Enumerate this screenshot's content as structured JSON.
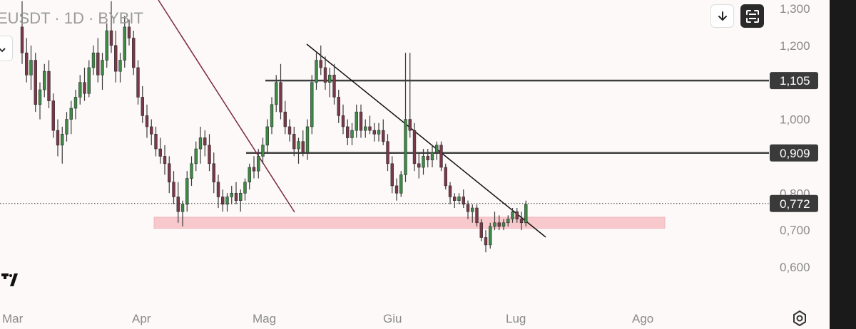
{
  "header": {
    "symbol_label": "EUSDT · 1D · BYBIT"
  },
  "toolbar": {
    "download_icon": "arrow-down-icon",
    "fullscreen_icon": "fullscreen-icon",
    "left_icon": "chevron-icon"
  },
  "footer": {
    "settings_icon": "gear-icon",
    "logo_icon": "tradingview-logo-icon"
  },
  "colors": {
    "up": "#3d8b47",
    "down": "#7a3848",
    "wick": "#3a3a3a",
    "zone": "#f7c8cc",
    "resistance": "#404040",
    "trendline_brown": "#7a2a3a",
    "trendline_black": "#111111",
    "badge": "#3a3a3a",
    "grid_dots": "#333333"
  },
  "chart_data": {
    "type": "candlestick",
    "title": "",
    "xlabel": "",
    "ylabel": "",
    "y_ticks": [
      "1,300",
      "1,200",
      "1,000",
      "0,800",
      "0,700",
      "0,600"
    ],
    "y_tick_values": [
      1.3,
      1.2,
      1.0,
      0.8,
      0.7,
      0.6
    ],
    "x_ticks": [
      "Mar",
      "Apr",
      "Mag",
      "Giu",
      "Lug",
      "Ago"
    ],
    "ylim": [
      0.55,
      1.33
    ],
    "horizontal_levels": [
      {
        "label": "1,105",
        "value": 1.105
      },
      {
        "label": "0,909",
        "value": 0.909
      }
    ],
    "current_price": {
      "label": "0,772",
      "value": 0.772
    },
    "support_zone": {
      "from": 0.705,
      "to": 0.735
    },
    "candles": [
      [
        1.25,
        1.32,
        1.15,
        1.18
      ],
      [
        1.18,
        1.22,
        1.1,
        1.12
      ],
      [
        1.12,
        1.2,
        1.08,
        1.16
      ],
      [
        1.16,
        1.18,
        1.02,
        1.04
      ],
      [
        1.04,
        1.1,
        1.0,
        1.08
      ],
      [
        1.08,
        1.15,
        1.06,
        1.13
      ],
      [
        1.13,
        1.16,
        1.03,
        1.05
      ],
      [
        1.05,
        1.07,
        0.95,
        0.97
      ],
      [
        0.97,
        1.0,
        0.9,
        0.93
      ],
      [
        0.93,
        0.98,
        0.88,
        0.96
      ],
      [
        0.96,
        1.02,
        0.94,
        1.0
      ],
      [
        1.0,
        1.05,
        0.96,
        1.03
      ],
      [
        1.03,
        1.08,
        1.0,
        1.06
      ],
      [
        1.06,
        1.12,
        1.04,
        1.1
      ],
      [
        1.1,
        1.14,
        1.05,
        1.07
      ],
      [
        1.07,
        1.16,
        1.06,
        1.14
      ],
      [
        1.14,
        1.2,
        1.12,
        1.18
      ],
      [
        1.18,
        1.22,
        1.1,
        1.12
      ],
      [
        1.12,
        1.18,
        1.08,
        1.16
      ],
      [
        1.16,
        1.26,
        1.14,
        1.24
      ],
      [
        1.24,
        1.32,
        1.18,
        1.2
      ],
      [
        1.2,
        1.24,
        1.1,
        1.13
      ],
      [
        1.13,
        1.18,
        1.1,
        1.16
      ],
      [
        1.16,
        1.28,
        1.14,
        1.25
      ],
      [
        1.25,
        1.27,
        1.2,
        1.22
      ],
      [
        1.22,
        1.24,
        1.12,
        1.14
      ],
      [
        1.14,
        1.16,
        1.04,
        1.06
      ],
      [
        1.06,
        1.09,
        0.99,
        1.01
      ],
      [
        1.01,
        1.04,
        0.95,
        0.98
      ],
      [
        0.98,
        1.0,
        0.93,
        0.96
      ],
      [
        0.96,
        0.98,
        0.9,
        0.92
      ],
      [
        0.92,
        0.95,
        0.88,
        0.9
      ],
      [
        0.9,
        0.93,
        0.85,
        0.88
      ],
      [
        0.88,
        0.9,
        0.8,
        0.83
      ],
      [
        0.83,
        0.86,
        0.77,
        0.79
      ],
      [
        0.79,
        0.83,
        0.72,
        0.75
      ],
      [
        0.75,
        0.78,
        0.71,
        0.77
      ],
      [
        0.77,
        0.86,
        0.75,
        0.84
      ],
      [
        0.84,
        0.9,
        0.82,
        0.88
      ],
      [
        0.88,
        0.94,
        0.86,
        0.92
      ],
      [
        0.92,
        0.98,
        0.88,
        0.95
      ],
      [
        0.95,
        0.97,
        0.9,
        0.93
      ],
      [
        0.93,
        0.96,
        0.86,
        0.88
      ],
      [
        0.88,
        0.91,
        0.8,
        0.83
      ],
      [
        0.83,
        0.85,
        0.76,
        0.79
      ],
      [
        0.79,
        0.81,
        0.75,
        0.77
      ],
      [
        0.77,
        0.8,
        0.75,
        0.79
      ],
      [
        0.79,
        0.82,
        0.77,
        0.8
      ],
      [
        0.8,
        0.83,
        0.77,
        0.78
      ],
      [
        0.78,
        0.81,
        0.75,
        0.8
      ],
      [
        0.8,
        0.84,
        0.78,
        0.83
      ],
      [
        0.83,
        0.88,
        0.81,
        0.87
      ],
      [
        0.87,
        0.9,
        0.84,
        0.86
      ],
      [
        0.86,
        0.92,
        0.84,
        0.9
      ],
      [
        0.9,
        0.95,
        0.88,
        0.93
      ],
      [
        0.93,
        1.0,
        0.91,
        0.98
      ],
      [
        0.98,
        1.06,
        0.96,
        1.04
      ],
      [
        1.04,
        1.12,
        1.02,
        1.1
      ],
      [
        1.1,
        1.15,
        1.0,
        1.02
      ],
      [
        1.02,
        1.05,
        0.96,
        0.98
      ],
      [
        0.98,
        1.0,
        0.94,
        0.96
      ],
      [
        0.96,
        0.98,
        0.9,
        0.92
      ],
      [
        0.92,
        0.95,
        0.88,
        0.94
      ],
      [
        0.94,
        0.97,
        0.9,
        0.91
      ],
      [
        0.91,
        1.0,
        0.89,
        0.98
      ],
      [
        0.98,
        1.12,
        0.96,
        1.1
      ],
      [
        1.1,
        1.18,
        1.08,
        1.16
      ],
      [
        1.16,
        1.2,
        1.12,
        1.14
      ],
      [
        1.14,
        1.17,
        1.08,
        1.1
      ],
      [
        1.1,
        1.14,
        1.06,
        1.12
      ],
      [
        1.12,
        1.15,
        1.04,
        1.06
      ],
      [
        1.06,
        1.08,
        0.99,
        1.01
      ],
      [
        1.01,
        1.04,
        0.96,
        0.98
      ],
      [
        0.98,
        1.0,
        0.93,
        0.95
      ],
      [
        0.95,
        0.99,
        0.93,
        0.97
      ],
      [
        0.97,
        1.04,
        0.95,
        1.02
      ],
      [
        1.02,
        1.04,
        0.95,
        0.97
      ],
      [
        0.97,
        1.0,
        0.95,
        0.98
      ],
      [
        0.98,
        1.01,
        0.96,
        0.97
      ],
      [
        0.97,
        0.99,
        0.94,
        0.96
      ],
      [
        0.96,
        0.99,
        0.94,
        0.97
      ],
      [
        0.97,
        1.0,
        0.93,
        0.94
      ],
      [
        0.94,
        0.96,
        0.86,
        0.88
      ],
      [
        0.88,
        0.9,
        0.8,
        0.82
      ],
      [
        0.82,
        0.84,
        0.78,
        0.8
      ],
      [
        0.8,
        0.86,
        0.79,
        0.85
      ],
      [
        0.85,
        1.18,
        0.83,
        1.0
      ],
      [
        1.0,
        1.18,
        0.95,
        0.97
      ],
      [
        0.97,
        0.99,
        0.86,
        0.88
      ],
      [
        0.88,
        0.91,
        0.84,
        0.87
      ],
      [
        0.87,
        0.92,
        0.85,
        0.9
      ],
      [
        0.9,
        0.92,
        0.87,
        0.89
      ],
      [
        0.89,
        0.93,
        0.87,
        0.91
      ],
      [
        0.91,
        0.94,
        0.89,
        0.93
      ],
      [
        0.93,
        0.94,
        0.86,
        0.87
      ],
      [
        0.87,
        0.88,
        0.81,
        0.82
      ],
      [
        0.82,
        0.83,
        0.77,
        0.79
      ],
      [
        0.79,
        0.8,
        0.76,
        0.78
      ],
      [
        0.78,
        0.8,
        0.77,
        0.79
      ],
      [
        0.79,
        0.81,
        0.76,
        0.77
      ],
      [
        0.77,
        0.78,
        0.73,
        0.75
      ],
      [
        0.75,
        0.77,
        0.72,
        0.76
      ],
      [
        0.76,
        0.77,
        0.71,
        0.72
      ],
      [
        0.72,
        0.73,
        0.67,
        0.68
      ],
      [
        0.68,
        0.7,
        0.64,
        0.66
      ],
      [
        0.66,
        0.72,
        0.65,
        0.71
      ],
      [
        0.71,
        0.75,
        0.7,
        0.72
      ],
      [
        0.72,
        0.74,
        0.7,
        0.71
      ],
      [
        0.71,
        0.73,
        0.7,
        0.72
      ],
      [
        0.72,
        0.74,
        0.71,
        0.73
      ],
      [
        0.73,
        0.76,
        0.72,
        0.75
      ],
      [
        0.75,
        0.76,
        0.72,
        0.73
      ],
      [
        0.73,
        0.75,
        0.7,
        0.72
      ],
      [
        0.72,
        0.78,
        0.71,
        0.77
      ]
    ]
  }
}
